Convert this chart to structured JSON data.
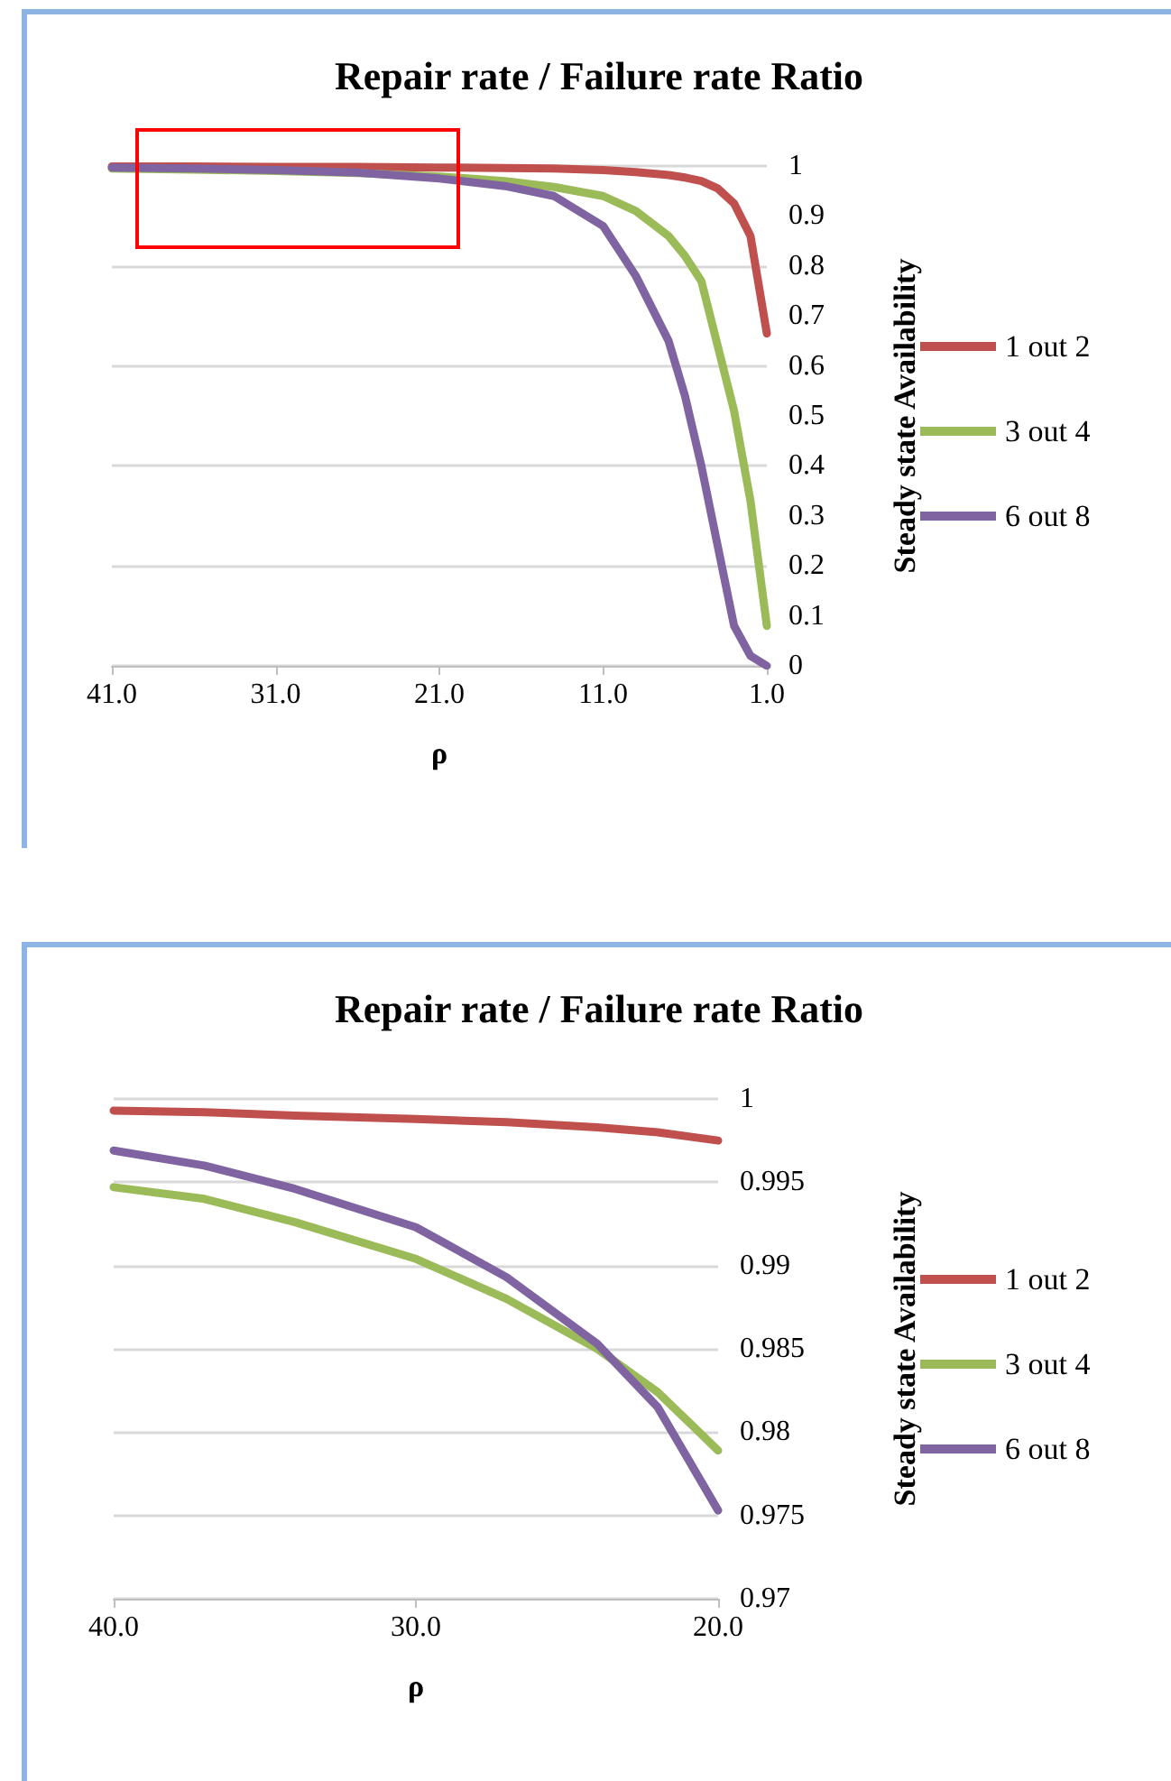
{
  "chart_data": [
    {
      "type": "line",
      "title": "Repair rate / Failure rate Ratio",
      "xlabel": "ρ",
      "ylabel": "Steady state Availability",
      "x": [
        41,
        36,
        31,
        26,
        21,
        17,
        14,
        11,
        9,
        7,
        6,
        5,
        4,
        3,
        2,
        1
      ],
      "series": [
        {
          "name": "1 out 2",
          "color": "#c0504d",
          "values": [
            0.999,
            0.999,
            0.998,
            0.998,
            0.997,
            0.996,
            0.995,
            0.992,
            0.988,
            0.982,
            0.977,
            0.97,
            0.955,
            0.925,
            0.86,
            0.665
          ]
        },
        {
          "name": "3 out 4",
          "color": "#9bbb59",
          "values": [
            0.995,
            0.993,
            0.99,
            0.986,
            0.979,
            0.97,
            0.958,
            0.94,
            0.91,
            0.86,
            0.82,
            0.77,
            0.64,
            0.51,
            0.33,
            0.08
          ]
        },
        {
          "name": "6 out 8",
          "color": "#8064a2",
          "values": [
            0.997,
            0.995,
            0.992,
            0.987,
            0.975,
            0.96,
            0.94,
            0.88,
            0.78,
            0.65,
            0.54,
            0.4,
            0.24,
            0.08,
            0.02,
            0
          ]
        }
      ],
      "xlim": [
        41,
        1
      ],
      "xticks": [
        {
          "value": 41,
          "label": "41.0"
        },
        {
          "value": 31,
          "label": "31.0"
        },
        {
          "value": 21,
          "label": "21.0"
        },
        {
          "value": 11,
          "label": "11.0"
        },
        {
          "value": 1,
          "label": "1.0"
        }
      ],
      "ylim": [
        0,
        1
      ],
      "yticks": [
        0,
        0.1,
        0.2,
        0.3,
        0.4,
        0.5,
        0.6,
        0.7,
        0.8,
        0.9,
        1
      ],
      "grid": "y",
      "legend": "right",
      "marker": "none",
      "line_style": "solid"
    },
    {
      "type": "line",
      "title": "Repair rate / Failure rate Ratio",
      "xlabel": "ρ",
      "ylabel": "Steady state Availability",
      "x": [
        40,
        37,
        34,
        30,
        27,
        24,
        22,
        20
      ],
      "series": [
        {
          "name": "1 out 2",
          "color": "#c0504d",
          "values": [
            0.9993,
            0.9992,
            0.999,
            0.9988,
            0.9986,
            0.9983,
            0.998,
            0.9975
          ]
        },
        {
          "name": "3 out 4",
          "color": "#9bbb59",
          "values": [
            0.9947,
            0.994,
            0.9926,
            0.9904,
            0.988,
            0.985,
            0.9824,
            0.9789
          ]
        },
        {
          "name": "6 out 8",
          "color": "#8064a2",
          "values": [
            0.9969,
            0.996,
            0.9946,
            0.9923,
            0.9893,
            0.9853,
            0.9815,
            0.9753
          ]
        }
      ],
      "xlim": [
        40,
        20
      ],
      "xticks": [
        {
          "value": 40,
          "label": "40.0"
        },
        {
          "value": 30,
          "label": "30.0"
        },
        {
          "value": 20,
          "label": "20.0"
        }
      ],
      "ylim": [
        0.97,
        1
      ],
      "yticks": [
        0.97,
        0.975,
        0.98,
        0.985,
        0.99,
        0.995,
        1
      ],
      "grid": "y",
      "legend": "right",
      "marker": "none",
      "line_style": "solid"
    }
  ]
}
